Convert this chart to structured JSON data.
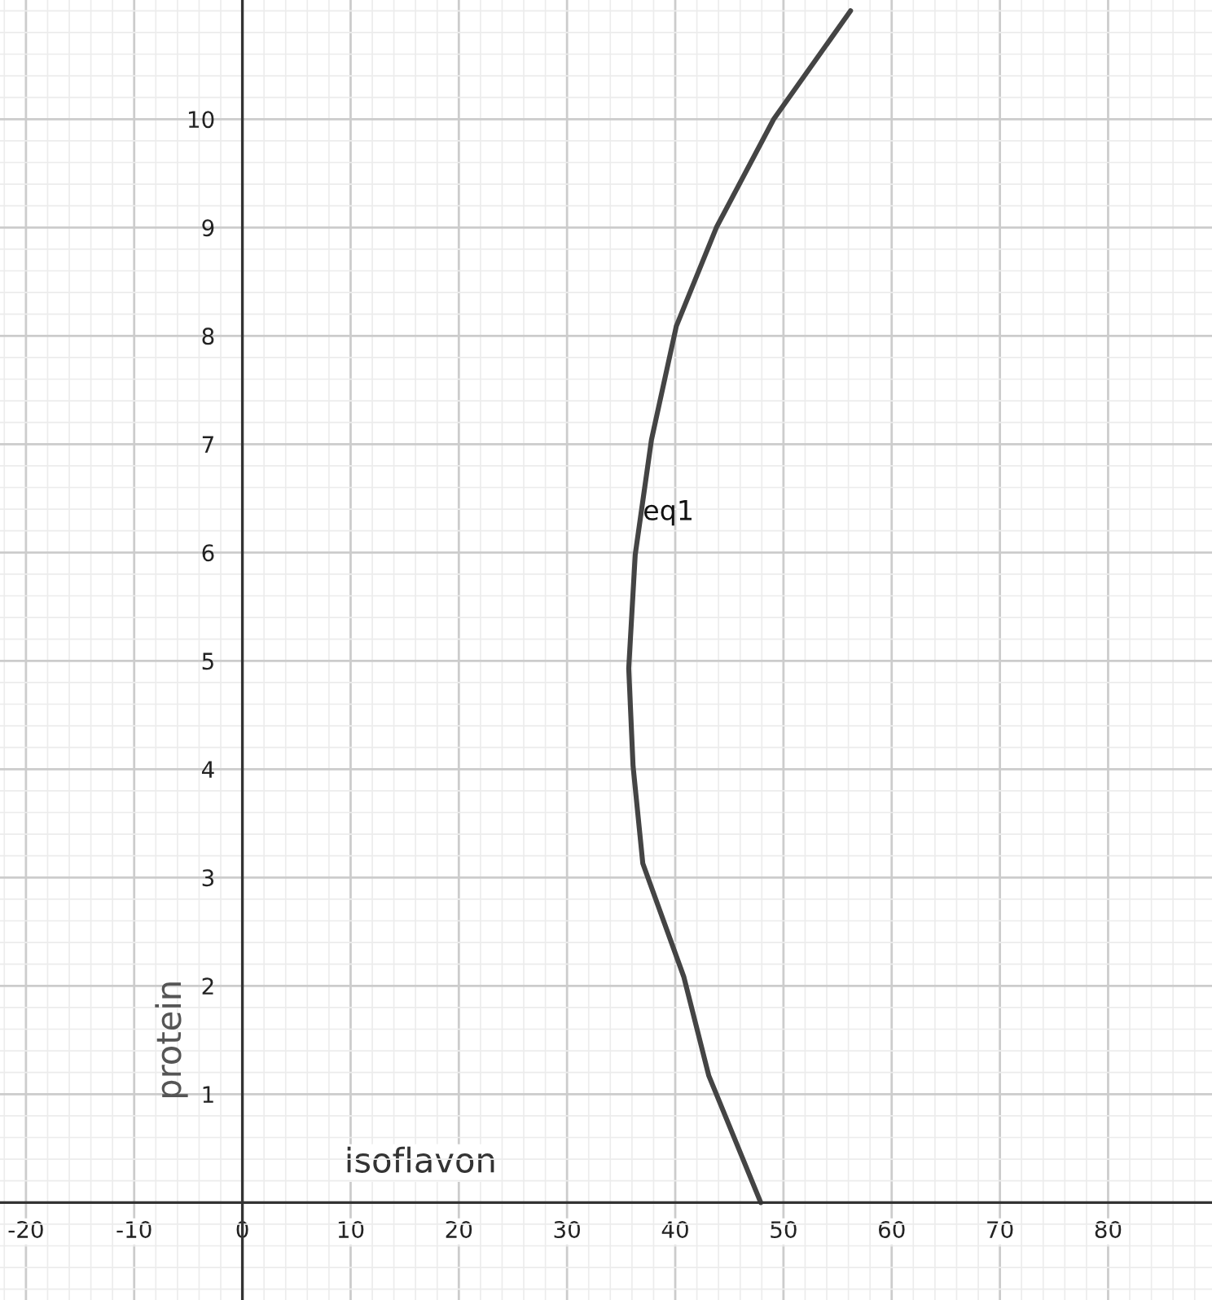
{
  "chart_data": {
    "type": "line",
    "xlabel": "isoflavon",
    "ylabel": "protein",
    "annotations": [
      {
        "text": "eq1",
        "x": 37,
        "y": 6.3
      }
    ],
    "series": [
      {
        "color": "#444444",
        "x": [
          47.9,
          43.1,
          40.8,
          37.0,
          36.1,
          35.7,
          36.3,
          37.8,
          40.1,
          43.8,
          49.1,
          56.2
        ],
        "values": [
          0,
          1.17,
          2.08,
          3.13,
          4.03,
          4.93,
          5.98,
          7.04,
          8.09,
          9.0,
          10.0,
          11.0
        ]
      }
    ],
    "xlim": [
      -22.4,
      89.6
    ],
    "ylim": [
      -0.9,
      11.1
    ],
    "xticks": [
      -20,
      -10,
      0,
      10,
      20,
      30,
      40,
      50,
      60,
      70,
      80
    ],
    "yticks": [
      1,
      2,
      3,
      4,
      5,
      6,
      7,
      8,
      9,
      10
    ],
    "grid": true,
    "legend": false,
    "line_style": "solid",
    "marker": "none"
  }
}
